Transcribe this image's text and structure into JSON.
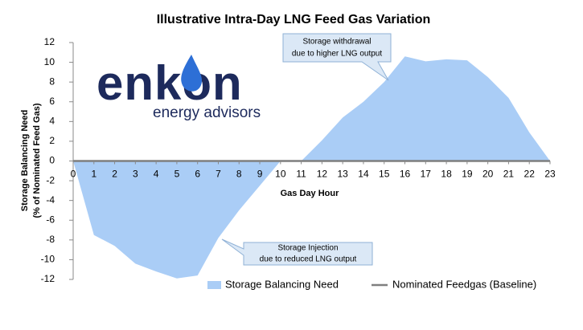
{
  "chart_data": {
    "type": "area",
    "title": "Illustrative Intra-Day LNG Feed Gas Variation",
    "x_label": "Gas Day Hour",
    "y_label": [
      "Storage Balancing Need",
      "(% of Nominated Feed Gas)"
    ],
    "x": [
      0,
      1,
      2,
      3,
      4,
      5,
      6,
      7,
      8,
      9,
      10,
      11,
      12,
      13,
      14,
      15,
      16,
      17,
      18,
      19,
      20,
      21,
      22,
      23
    ],
    "series": [
      {
        "name": "Storage Balancing Need",
        "color": "#aacdf6",
        "kind": "area",
        "values": [
          0,
          -7.5,
          -8.6,
          -10.4,
          -11.2,
          -11.9,
          -11.6,
          -7.8,
          -5,
          -2.5,
          0,
          0,
          2.1,
          4.4,
          6,
          8,
          10.6,
          10.1,
          10.3,
          10.2,
          8.5,
          6.4,
          2.9,
          0
        ]
      },
      {
        "name": "Nominated Feedgas (Baseline)",
        "color": "#7f7f7f",
        "kind": "line",
        "values": [
          0,
          0,
          0,
          0,
          0,
          0,
          0,
          0,
          0,
          0,
          0,
          0,
          0,
          0,
          0,
          0,
          0,
          0,
          0,
          0,
          0,
          0,
          0,
          0
        ]
      }
    ],
    "xlim": [
      0,
      23
    ],
    "xticks": [
      0,
      1,
      2,
      3,
      4,
      5,
      6,
      7,
      8,
      9,
      10,
      11,
      12,
      13,
      14,
      15,
      16,
      17,
      18,
      19,
      20,
      21,
      22,
      23
    ],
    "ylim": [
      -12,
      12
    ],
    "yticks": [
      -12,
      -10,
      -8,
      -6,
      -4,
      -2,
      0,
      2,
      4,
      6,
      8,
      10,
      12
    ],
    "legend": "bottom",
    "annotations": [
      {
        "lines": [
          "Storage withdrawal",
          "due to higher LNG output"
        ]
      },
      {
        "lines": [
          "Storage Injection",
          "due to reduced LNG output"
        ]
      }
    ]
  },
  "logo": {
    "name": "enkon",
    "tagline": "energy advisors"
  }
}
